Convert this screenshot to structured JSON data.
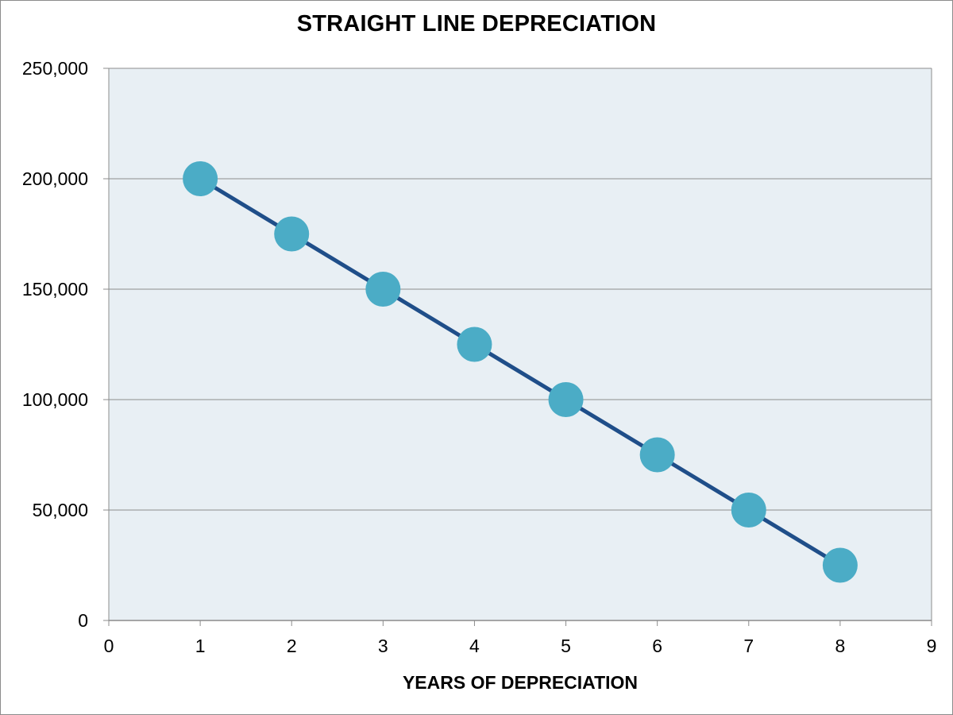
{
  "chart_data": {
    "type": "line",
    "title": "STRAIGHT LINE DEPRECIATION",
    "xlabel": "YEARS OF DEPRECIATION",
    "ylabel": "",
    "x": [
      1,
      2,
      3,
      4,
      5,
      6,
      7,
      8
    ],
    "series": [
      {
        "values": [
          200000,
          175000,
          150000,
          125000,
          100000,
          75000,
          50000,
          25000
        ]
      }
    ],
    "xlim": [
      0,
      9
    ],
    "ylim": [
      0,
      250000
    ],
    "x_ticks": [
      "0",
      "1",
      "2",
      "3",
      "4",
      "5",
      "6",
      "7",
      "8",
      "9"
    ],
    "y_ticks": [
      "0",
      "50,000",
      "100,000",
      "150,000",
      "200,000",
      "250,000"
    ],
    "grid": "horizontal",
    "legend": "none",
    "colors": {
      "line": "#1f4e89",
      "marker": "#4bacc6",
      "plot_background": "#e8eff4",
      "gridline": "#8c8c8c"
    }
  }
}
